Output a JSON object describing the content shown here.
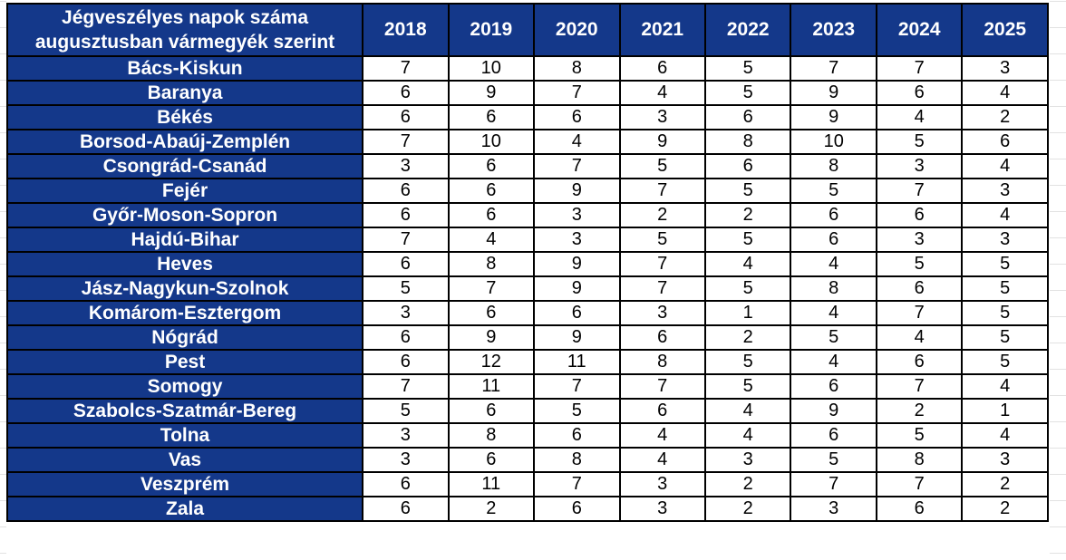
{
  "colors": {
    "header_bg": "#14388a",
    "header_text": "#ffffff",
    "cell_bg": "#ffffff",
    "cell_text": "#000000",
    "border": "#000000",
    "margin_gridline": "#e2e2e2"
  },
  "chart_data": {
    "type": "table",
    "title": "Jégveszélyes napok száma augusztusban vármegyék szerint",
    "title_lines": [
      "Jégveszélyes napok száma",
      "augusztusban vármegyék szerint"
    ],
    "columns": [
      "2018",
      "2019",
      "2020",
      "2021",
      "2022",
      "2023",
      "2024",
      "2025"
    ],
    "rows": [
      {
        "county": "Bács-Kiskun",
        "values": [
          7,
          10,
          8,
          6,
          5,
          7,
          7,
          3
        ]
      },
      {
        "county": "Baranya",
        "values": [
          6,
          9,
          7,
          4,
          5,
          9,
          6,
          4
        ]
      },
      {
        "county": "Békés",
        "values": [
          6,
          6,
          6,
          3,
          6,
          9,
          4,
          2
        ]
      },
      {
        "county": "Borsod-Abaúj-Zemplén",
        "values": [
          7,
          10,
          4,
          9,
          8,
          10,
          5,
          6
        ]
      },
      {
        "county": "Csongrád-Csanád",
        "values": [
          3,
          6,
          7,
          5,
          6,
          8,
          3,
          4
        ]
      },
      {
        "county": "Fejér",
        "values": [
          6,
          6,
          9,
          7,
          5,
          5,
          7,
          3
        ]
      },
      {
        "county": "Győr-Moson-Sopron",
        "values": [
          6,
          6,
          3,
          2,
          2,
          6,
          6,
          4
        ]
      },
      {
        "county": "Hajdú-Bihar",
        "values": [
          7,
          4,
          3,
          5,
          5,
          6,
          3,
          3
        ]
      },
      {
        "county": "Heves",
        "values": [
          6,
          8,
          9,
          7,
          4,
          4,
          5,
          5
        ]
      },
      {
        "county": "Jász-Nagykun-Szolnok",
        "values": [
          5,
          7,
          9,
          7,
          5,
          8,
          6,
          5
        ]
      },
      {
        "county": "Komárom-Esztergom",
        "values": [
          3,
          6,
          6,
          3,
          1,
          4,
          7,
          5
        ]
      },
      {
        "county": "Nógrád",
        "values": [
          6,
          9,
          9,
          6,
          2,
          5,
          4,
          5
        ]
      },
      {
        "county": "Pest",
        "values": [
          6,
          12,
          11,
          8,
          5,
          4,
          6,
          5
        ]
      },
      {
        "county": "Somogy",
        "values": [
          7,
          11,
          7,
          7,
          5,
          6,
          7,
          4
        ]
      },
      {
        "county": "Szabolcs-Szatmár-Bereg",
        "values": [
          5,
          6,
          5,
          6,
          4,
          9,
          2,
          1
        ]
      },
      {
        "county": "Tolna",
        "values": [
          3,
          8,
          6,
          4,
          4,
          6,
          5,
          4
        ]
      },
      {
        "county": "Vas",
        "values": [
          3,
          6,
          8,
          4,
          3,
          5,
          8,
          3
        ]
      },
      {
        "county": "Veszprém",
        "values": [
          6,
          11,
          7,
          3,
          2,
          7,
          7,
          2
        ]
      },
      {
        "county": "Zala",
        "values": [
          6,
          2,
          6,
          3,
          2,
          3,
          6,
          2
        ]
      }
    ]
  }
}
